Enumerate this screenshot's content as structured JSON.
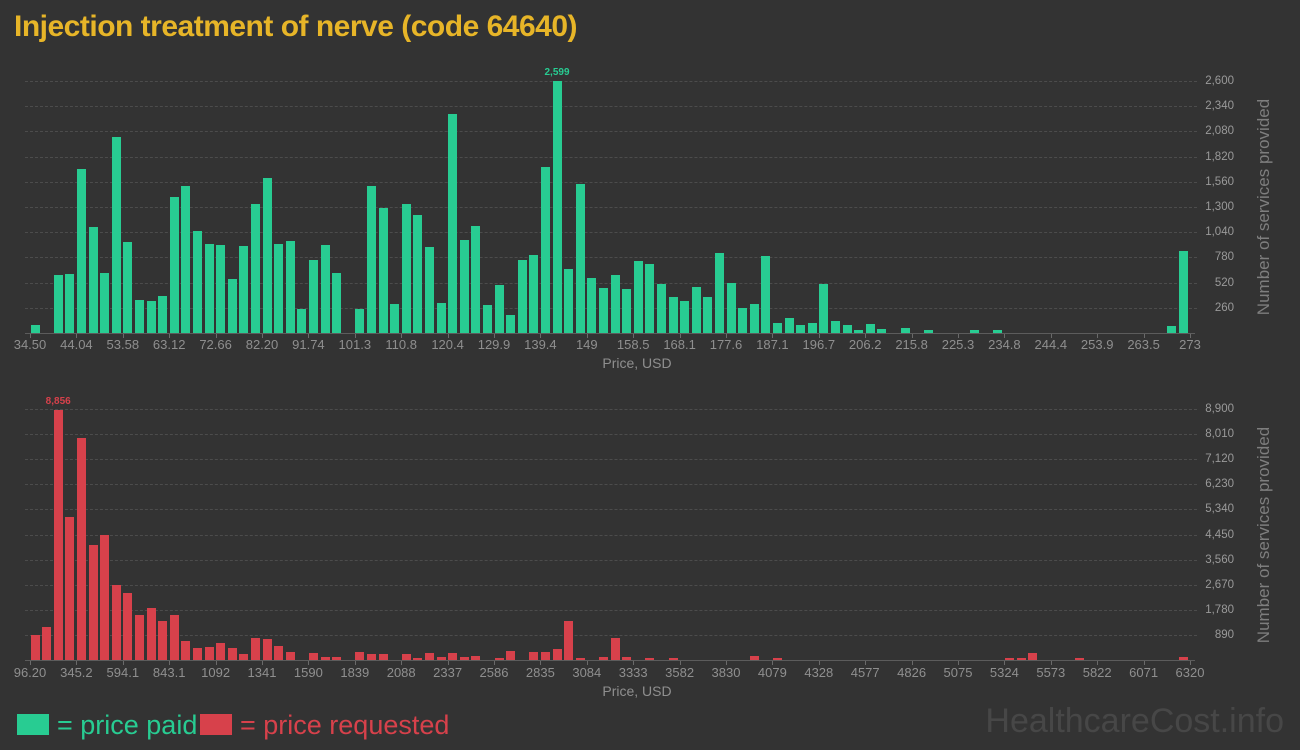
{
  "title": "Injection treatment of nerve (code 64640)",
  "watermark": "HealthcareCost.info",
  "legend": {
    "paid_label": "= price paid",
    "requested_label": "= price requested"
  },
  "colors": {
    "background": "#333333",
    "title": "#E7B528",
    "paid": "#28CC92",
    "requested": "#D7414B",
    "grid": "#4C4C4C",
    "axis_text": "#8F8F8F",
    "watermark": "#474747"
  },
  "chart_data": [
    {
      "type": "bar",
      "name": "price-paid-histogram",
      "color": "#28CC92",
      "xlabel": "Price, USD",
      "ylabel": "Number of services provided",
      "peak_label": "2,599",
      "x_tick_labels": [
        "34.50",
        "44.04",
        "53.58",
        "63.12",
        "72.66",
        "82.20",
        "91.74",
        "101.3",
        "110.8",
        "120.4",
        "129.9",
        "139.4",
        "149",
        "158.5",
        "168.1",
        "177.6",
        "187.1",
        "196.7",
        "206.2",
        "215.8",
        "225.3",
        "234.8",
        "244.4",
        "253.9",
        "263.5",
        "273"
      ],
      "y_tick_labels": [
        "260",
        "520",
        "780",
        "1,040",
        "1,300",
        "1,560",
        "1,820",
        "2,080",
        "2,340",
        "2,600"
      ],
      "ylim": [
        0,
        2735
      ],
      "grid": true,
      "values": [
        80,
        0,
        600,
        605,
        1690,
        1095,
        620,
        2020,
        935,
        340,
        330,
        385,
        1400,
        1513,
        1050,
        920,
        910,
        557,
        900,
        1330,
        1600,
        918,
        945,
        250,
        750,
        910,
        620,
        0,
        250,
        1520,
        1290,
        300,
        1330,
        1220,
        890,
        310,
        2260,
        960,
        1100,
        290,
        500,
        190,
        750,
        800,
        1710,
        2599,
        660,
        1540,
        570,
        460,
        600,
        450,
        740,
        710,
        510,
        370,
        330,
        470,
        370,
        830,
        520,
        260,
        300,
        790,
        100,
        150,
        80,
        100,
        510,
        120,
        80,
        35,
        95,
        45,
        0,
        50,
        0,
        35,
        0,
        0,
        0,
        35,
        0,
        35,
        0,
        0,
        0,
        0,
        0,
        0,
        0,
        0,
        0,
        0,
        0,
        0,
        0,
        0,
        70,
        850
      ]
    },
    {
      "type": "bar",
      "name": "price-requested-histogram",
      "color": "#D7414B",
      "xlabel": "Price, USD",
      "ylabel": "Number of services provided",
      "peak_label": "8,856",
      "x_tick_labels": [
        "96.20",
        "345.2",
        "594.1",
        "843.1",
        "1092",
        "1341",
        "1590",
        "1839",
        "2088",
        "2337",
        "2586",
        "2835",
        "3084",
        "3333",
        "3582",
        "3830",
        "4079",
        "4328",
        "4577",
        "4826",
        "5075",
        "5324",
        "5573",
        "5822",
        "6071",
        "6320"
      ],
      "y_tick_labels": [
        "890",
        "1,780",
        "2,670",
        "3,560",
        "4,450",
        "5,340",
        "6,230",
        "7,120",
        "8,010",
        "8,900"
      ],
      "ylim": [
        0,
        9350
      ],
      "grid": true,
      "values": [
        890,
        1180,
        8856,
        5080,
        7860,
        4080,
        4430,
        2660,
        2360,
        1600,
        1830,
        1380,
        1600,
        670,
        440,
        460,
        620,
        410,
        200,
        790,
        730,
        500,
        300,
        0,
        260,
        105,
        120,
        0,
        300,
        200,
        200,
        0,
        200,
        80,
        260,
        120,
        240,
        120,
        150,
        0,
        60,
        320,
        0,
        300,
        300,
        380,
        1380,
        30,
        0,
        120,
        770,
        120,
        0,
        80,
        0,
        35,
        0,
        0,
        0,
        0,
        0,
        0,
        150,
        0,
        70,
        0,
        0,
        0,
        0,
        0,
        0,
        0,
        0,
        0,
        0,
        0,
        0,
        0,
        0,
        0,
        0,
        0,
        0,
        0,
        35,
        60,
        260,
        0,
        0,
        0,
        60,
        0,
        0,
        0,
        0,
        0,
        0,
        0,
        0,
        90
      ]
    }
  ]
}
